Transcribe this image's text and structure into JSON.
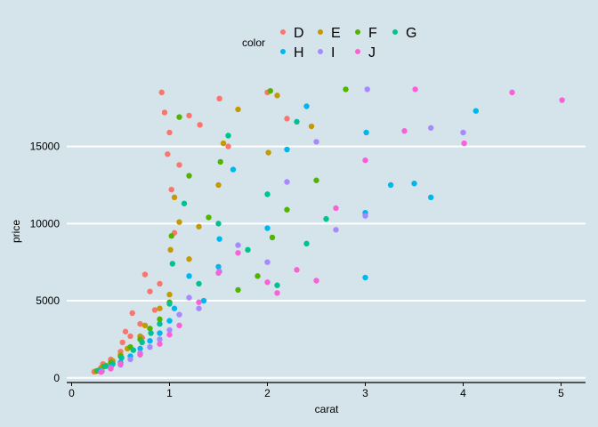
{
  "chart_data": {
    "type": "scatter",
    "xlabel": "carat",
    "ylabel": "price",
    "xlim": [
      -0.05,
      5.25
    ],
    "ylim": [
      -300,
      19300
    ],
    "x_ticks": [
      0,
      1,
      2,
      3,
      4,
      5
    ],
    "y_ticks": [
      0,
      5000,
      10000,
      15000
    ],
    "grid": "horizontal-major",
    "legend": {
      "title": "color",
      "placement": "top"
    },
    "background": "#d5e4eb",
    "series": [
      {
        "name": "D",
        "color": "#f8766d",
        "points": [
          [
            0.23,
            400
          ],
          [
            0.3,
            650
          ],
          [
            0.32,
            900
          ],
          [
            0.4,
            1200
          ],
          [
            0.5,
            1700
          ],
          [
            0.52,
            2300
          ],
          [
            0.55,
            3000
          ],
          [
            0.6,
            2700
          ],
          [
            0.62,
            4200
          ],
          [
            0.7,
            3500
          ],
          [
            0.72,
            2600
          ],
          [
            0.75,
            6700
          ],
          [
            0.8,
            5600
          ],
          [
            0.85,
            4400
          ],
          [
            0.9,
            6100
          ],
          [
            0.92,
            18500
          ],
          [
            0.95,
            17200
          ],
          [
            0.98,
            14500
          ],
          [
            1.0,
            15900
          ],
          [
            1.02,
            12200
          ],
          [
            1.05,
            9400
          ],
          [
            1.1,
            13800
          ],
          [
            1.2,
            17000
          ],
          [
            1.31,
            16400
          ],
          [
            1.51,
            18100
          ],
          [
            1.6,
            15000
          ],
          [
            2.0,
            18500
          ],
          [
            2.2,
            16800
          ]
        ]
      },
      {
        "name": "E",
        "color": "#c49a00",
        "points": [
          [
            0.25,
            430
          ],
          [
            0.31,
            700
          ],
          [
            0.35,
            800
          ],
          [
            0.42,
            1100
          ],
          [
            0.5,
            1500
          ],
          [
            0.57,
            1900
          ],
          [
            0.7,
            2700
          ],
          [
            0.75,
            3400
          ],
          [
            0.9,
            4500
          ],
          [
            1.0,
            5400
          ],
          [
            1.01,
            8300
          ],
          [
            1.05,
            11700
          ],
          [
            1.1,
            10100
          ],
          [
            1.2,
            7700
          ],
          [
            1.3,
            9800
          ],
          [
            1.5,
            12500
          ],
          [
            1.55,
            15200
          ],
          [
            1.7,
            17400
          ],
          [
            2.01,
            14600
          ],
          [
            2.1,
            18300
          ],
          [
            2.45,
            16300
          ]
        ]
      },
      {
        "name": "F",
        "color": "#53b400",
        "points": [
          [
            0.26,
            460
          ],
          [
            0.33,
            740
          ],
          [
            0.4,
            1000
          ],
          [
            0.5,
            1400
          ],
          [
            0.6,
            2000
          ],
          [
            0.7,
            2500
          ],
          [
            0.8,
            3200
          ],
          [
            0.9,
            3800
          ],
          [
            1.0,
            4900
          ],
          [
            1.02,
            9200
          ],
          [
            1.1,
            16900
          ],
          [
            1.2,
            13100
          ],
          [
            1.4,
            10400
          ],
          [
            1.52,
            14000
          ],
          [
            1.7,
            5700
          ],
          [
            1.9,
            6600
          ],
          [
            2.03,
            18600
          ],
          [
            2.05,
            9100
          ],
          [
            2.2,
            10900
          ],
          [
            2.5,
            12800
          ],
          [
            2.8,
            18700
          ]
        ]
      },
      {
        "name": "G",
        "color": "#00c094",
        "points": [
          [
            0.28,
            480
          ],
          [
            0.35,
            760
          ],
          [
            0.42,
            900
          ],
          [
            0.51,
            1300
          ],
          [
            0.63,
            1800
          ],
          [
            0.72,
            2300
          ],
          [
            0.81,
            2900
          ],
          [
            0.9,
            3500
          ],
          [
            1.0,
            4800
          ],
          [
            1.03,
            7400
          ],
          [
            1.15,
            11300
          ],
          [
            1.3,
            6100
          ],
          [
            1.5,
            10000
          ],
          [
            1.6,
            15700
          ],
          [
            1.8,
            8300
          ],
          [
            2.0,
            11900
          ],
          [
            2.1,
            6000
          ],
          [
            2.3,
            16600
          ],
          [
            2.4,
            8700
          ],
          [
            2.6,
            10300
          ]
        ]
      },
      {
        "name": "H",
        "color": "#00b6eb",
        "points": [
          [
            0.3,
            450
          ],
          [
            0.4,
            700
          ],
          [
            0.5,
            1000
          ],
          [
            0.6,
            1400
          ],
          [
            0.7,
            1900
          ],
          [
            0.8,
            2400
          ],
          [
            0.9,
            2900
          ],
          [
            1.0,
            3700
          ],
          [
            1.05,
            4500
          ],
          [
            1.2,
            6600
          ],
          [
            1.35,
            5000
          ],
          [
            1.5,
            7200
          ],
          [
            1.51,
            9000
          ],
          [
            1.65,
            13500
          ],
          [
            2.0,
            9700
          ],
          [
            2.2,
            14800
          ],
          [
            2.4,
            17600
          ],
          [
            3.0,
            6500
          ],
          [
            3.0,
            10700
          ],
          [
            3.01,
            15900
          ],
          [
            3.26,
            12500
          ],
          [
            3.5,
            12600
          ],
          [
            3.67,
            11700
          ],
          [
            4.13,
            17300
          ]
        ]
      },
      {
        "name": "I",
        "color": "#a58aff",
        "points": [
          [
            0.31,
            420
          ],
          [
            0.4,
            650
          ],
          [
            0.5,
            850
          ],
          [
            0.6,
            1200
          ],
          [
            0.7,
            1600
          ],
          [
            0.8,
            2000
          ],
          [
            0.9,
            2500
          ],
          [
            1.0,
            3100
          ],
          [
            1.1,
            4100
          ],
          [
            1.2,
            5200
          ],
          [
            1.3,
            4500
          ],
          [
            1.51,
            6900
          ],
          [
            1.7,
            8600
          ],
          [
            2.0,
            7500
          ],
          [
            2.2,
            12700
          ],
          [
            2.5,
            15300
          ],
          [
            2.7,
            9600
          ],
          [
            3.0,
            10500
          ],
          [
            3.02,
            18700
          ],
          [
            3.67,
            16200
          ],
          [
            4.0,
            15900
          ]
        ]
      },
      {
        "name": "J",
        "color": "#fb61d7",
        "points": [
          [
            0.3,
            380
          ],
          [
            0.4,
            600
          ],
          [
            0.5,
            900
          ],
          [
            0.7,
            1500
          ],
          [
            0.9,
            2200
          ],
          [
            1.0,
            2800
          ],
          [
            1.1,
            3400
          ],
          [
            1.3,
            4900
          ],
          [
            1.5,
            6800
          ],
          [
            1.7,
            8100
          ],
          [
            2.0,
            6200
          ],
          [
            2.1,
            5500
          ],
          [
            2.3,
            7000
          ],
          [
            2.5,
            6300
          ],
          [
            2.7,
            11000
          ],
          [
            3.0,
            14100
          ],
          [
            3.4,
            16000
          ],
          [
            3.51,
            18700
          ],
          [
            4.01,
            15200
          ],
          [
            4.5,
            18500
          ],
          [
            5.01,
            18000
          ]
        ]
      }
    ]
  }
}
